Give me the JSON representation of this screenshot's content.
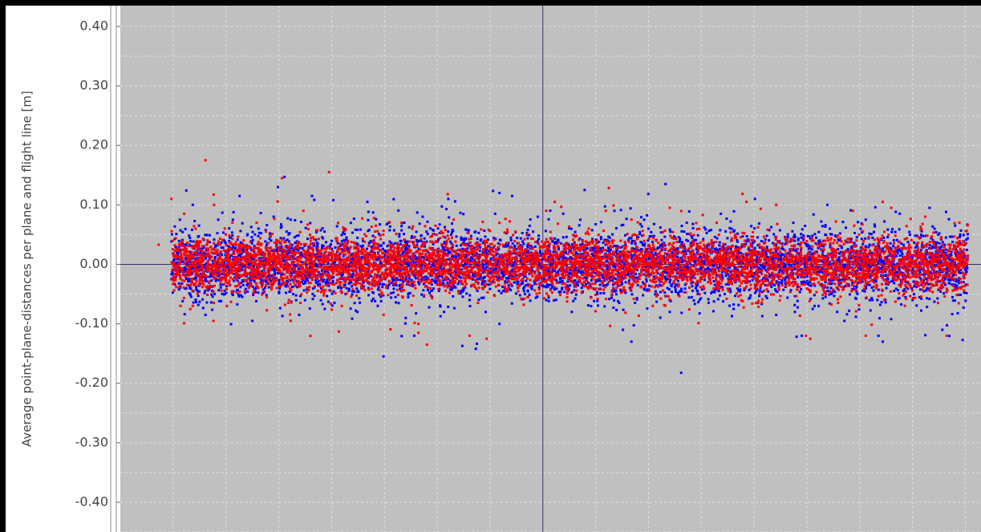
{
  "chart_data": {
    "type": "scatter",
    "title": "",
    "xlabel": "",
    "ylabel": "Average point-plane-distances per plane and flight line [m]",
    "ylim": [
      -0.45,
      0.435
    ],
    "y_ticks": [
      "0.40",
      "0.30",
      "0.20",
      "0.10",
      "0.00",
      "-0.10",
      "-0.20",
      "-0.30",
      "-0.40"
    ],
    "y_tick_values": [
      0.4,
      0.3,
      0.2,
      0.1,
      0.0,
      -0.1,
      -0.2,
      -0.3,
      -0.4
    ],
    "xlim": [
      0,
      1
    ],
    "x_grid": [
      0.062,
      0.124,
      0.186,
      0.248,
      0.31,
      0.372,
      0.434,
      0.496,
      0.558,
      0.62,
      0.682,
      0.744,
      0.806,
      0.868,
      0.93,
      0.992
    ],
    "y_grid": [
      0.45,
      0.4,
      0.35,
      0.3,
      0.25,
      0.2,
      0.15,
      0.1,
      0.05,
      -0.05,
      -0.1,
      -0.15,
      -0.2,
      -0.25,
      -0.3,
      -0.35,
      -0.4,
      -0.45
    ],
    "crosshair": {
      "x": 0.496,
      "y": 0.0
    },
    "x_range_points": [
      0.06,
      0.995
    ],
    "grid": true,
    "colors": {
      "background": "#c0c0c0",
      "grid": "#e0e0e0",
      "crosshair": "#333366",
      "series1": "#0000ff",
      "series2": "#ff0000"
    },
    "series": [
      {
        "color": "#0000ff",
        "typical_spread": 0.028,
        "outliers": [
          [
            0.06,
            -0.025
          ],
          [
            0.07,
            0.075
          ],
          [
            0.085,
            0.1
          ],
          [
            0.1,
            -0.085
          ],
          [
            0.115,
            0.075
          ],
          [
            0.14,
            0.115
          ],
          [
            0.155,
            -0.095
          ],
          [
            0.18,
            0.08
          ],
          [
            0.185,
            0.13
          ],
          [
            0.2,
            0.075
          ],
          [
            0.21,
            -0.085
          ],
          [
            0.225,
            0.115
          ],
          [
            0.24,
            -0.075
          ],
          [
            0.25,
            0.108
          ],
          [
            0.275,
            -0.065
          ],
          [
            0.29,
            0.105
          ],
          [
            0.315,
            0.07
          ],
          [
            0.335,
            -0.09
          ],
          [
            0.345,
            -0.12
          ],
          [
            0.355,
            0.08
          ],
          [
            0.38,
            -0.08
          ],
          [
            0.385,
            0.11
          ],
          [
            0.41,
            -0.06
          ],
          [
            0.44,
            0.085
          ],
          [
            0.445,
            0.12
          ],
          [
            0.445,
            -0.1
          ],
          [
            0.46,
            0.115
          ],
          [
            0.475,
            -0.05
          ],
          [
            0.49,
            0.08
          ],
          [
            0.5,
            -0.06
          ],
          [
            0.52,
            0.085
          ],
          [
            0.53,
            -0.08
          ],
          [
            0.54,
            0.075
          ],
          [
            0.545,
            0.125
          ],
          [
            0.56,
            -0.05
          ],
          [
            0.58,
            0.09
          ],
          [
            0.59,
            -0.11
          ],
          [
            0.6,
            -0.13
          ],
          [
            0.615,
            0.075
          ],
          [
            0.64,
            0.135
          ],
          [
            0.645,
            -0.08
          ],
          [
            0.665,
            0.07
          ],
          [
            0.68,
            -0.06
          ],
          [
            0.705,
            0.085
          ],
          [
            0.72,
            -0.075
          ],
          [
            0.745,
            0.11
          ],
          [
            0.77,
            -0.085
          ],
          [
            0.79,
            0.07
          ],
          [
            0.8,
            -0.12
          ],
          [
            0.815,
            -0.07
          ],
          [
            0.83,
            0.1
          ],
          [
            0.85,
            -0.095
          ],
          [
            0.875,
            0.075
          ],
          [
            0.89,
            -0.12
          ],
          [
            0.895,
            -0.13
          ],
          [
            0.915,
            0.085
          ],
          [
            0.93,
            -0.06
          ],
          [
            0.95,
            0.095
          ],
          [
            0.965,
            -0.11
          ],
          [
            0.98,
            0.065
          ],
          [
            0.99,
            -0.03
          ]
        ]
      },
      {
        "color": "#ff0000",
        "typical_spread": 0.022,
        "outliers": [
          [
            0.045,
            0.033
          ],
          [
            0.06,
            0.11
          ],
          [
            0.075,
            0.085
          ],
          [
            0.085,
            -0.07
          ],
          [
            0.1,
            0.175
          ],
          [
            0.11,
            0.1
          ],
          [
            0.125,
            -0.07
          ],
          [
            0.16,
            0.07
          ],
          [
            0.19,
            0.145
          ],
          [
            0.2,
            -0.095
          ],
          [
            0.215,
            0.09
          ],
          [
            0.245,
            0.155
          ],
          [
            0.26,
            -0.07
          ],
          [
            0.3,
            0.065
          ],
          [
            0.33,
            0.07
          ],
          [
            0.35,
            -0.1
          ],
          [
            0.35,
            -0.115
          ],
          [
            0.36,
            -0.135
          ],
          [
            0.37,
            0.065
          ],
          [
            0.41,
            -0.12
          ],
          [
            0.43,
            -0.125
          ],
          [
            0.445,
            0.07
          ],
          [
            0.5,
            0.09
          ],
          [
            0.51,
            0.105
          ],
          [
            0.55,
            0.06
          ],
          [
            0.57,
            0.09
          ],
          [
            0.6,
            0.075
          ],
          [
            0.625,
            -0.07
          ],
          [
            0.645,
            0.095
          ],
          [
            0.7,
            0.07
          ],
          [
            0.735,
            0.105
          ],
          [
            0.77,
            0.1
          ],
          [
            0.805,
            -0.12
          ],
          [
            0.81,
            -0.125
          ],
          [
            0.86,
            0.09
          ],
          [
            0.875,
            -0.12
          ],
          [
            0.895,
            0.105
          ],
          [
            0.905,
            0.095
          ],
          [
            0.945,
            0.08
          ],
          [
            0.96,
            -0.065
          ],
          [
            0.97,
            -0.12
          ],
          [
            0.985,
            0.07
          ]
        ]
      }
    ]
  }
}
